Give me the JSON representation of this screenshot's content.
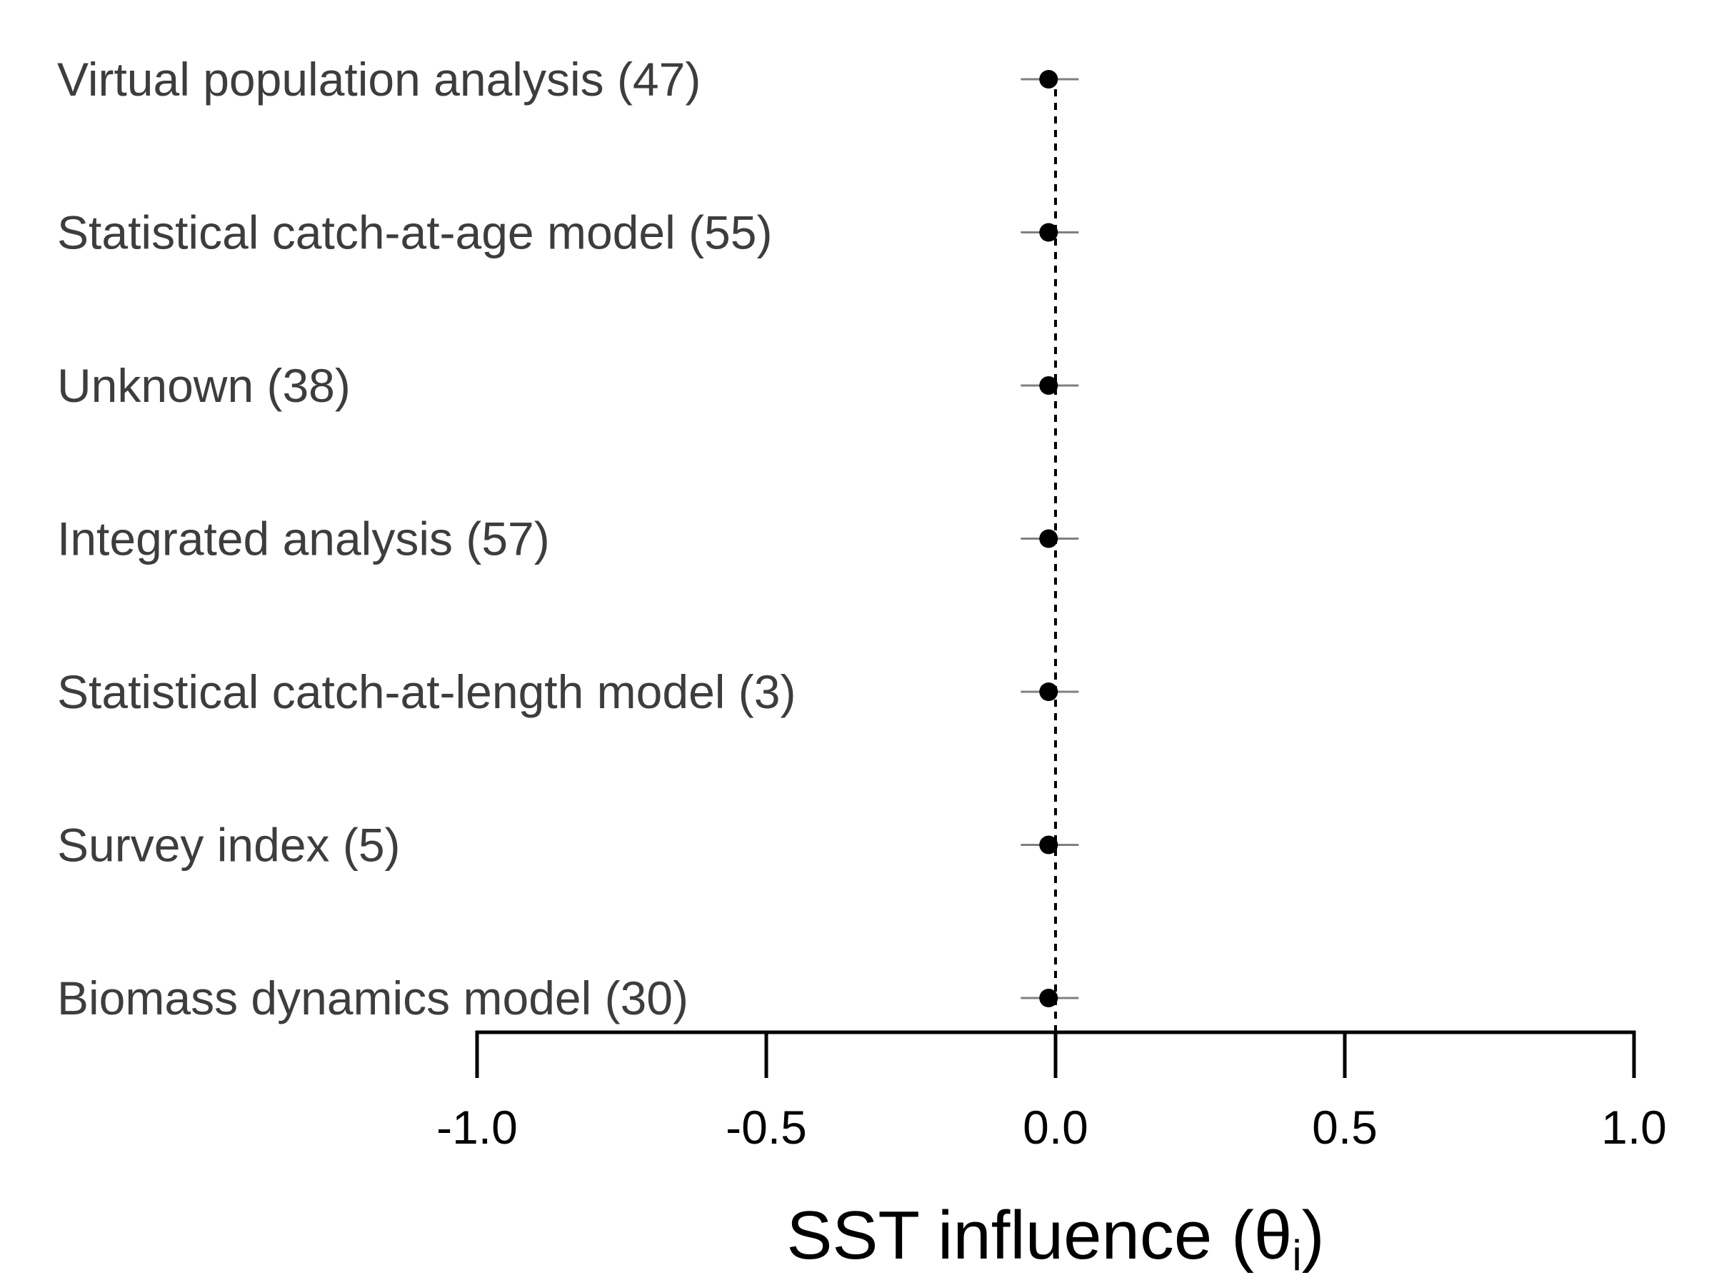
{
  "chart_data": {
    "type": "forest",
    "categories": [
      "Virtual population analysis (47)",
      "Statistical catch-at-age model (55)",
      "Unknown (38)",
      "Integrated analysis (57)",
      "Statistical catch-at-length model (3)",
      "Survey index (5)",
      "Biomass dynamics model (30)"
    ],
    "series": [
      {
        "values": [
          -0.012,
          -0.012,
          -0.012,
          -0.012,
          -0.012,
          -0.012,
          -0.012
        ],
        "lower": [
          -0.06,
          -0.06,
          -0.06,
          -0.06,
          -0.06,
          -0.06,
          -0.06
        ],
        "upper": [
          0.04,
          0.04,
          0.04,
          0.04,
          0.04,
          0.04,
          0.04
        ]
      }
    ],
    "xlim": [
      -1.0,
      1.0
    ],
    "xticks": [
      -1.0,
      -0.5,
      0.0,
      0.5,
      1.0
    ],
    "xtick_labels": [
      "-1.0",
      "-0.5",
      "0.0",
      "0.5",
      "1.0"
    ],
    "xlabel": "SST influence (θ",
    "xlabel_subscript": "i",
    "xlabel_suffix": ")",
    "reference_line": 0.0,
    "grid": false,
    "colors": {
      "point": "#000000",
      "interval": "#808080",
      "label": "#3d3d3d"
    }
  }
}
